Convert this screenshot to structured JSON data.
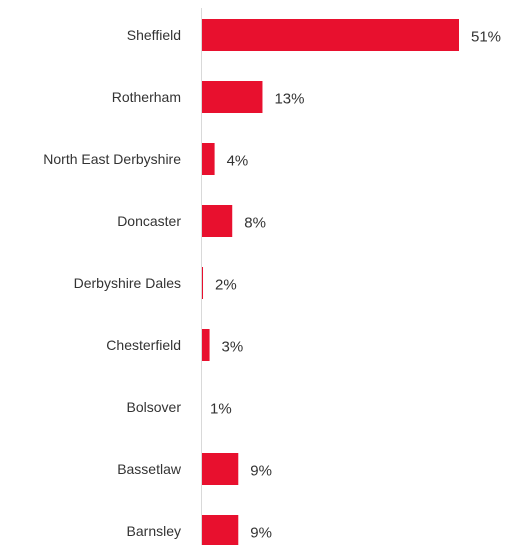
{
  "chart_data": {
    "type": "bar",
    "orientation": "horizontal",
    "categories": [
      "Sheffield",
      "Rotherham",
      "North East Derbyshire",
      "Doncaster",
      "Derbyshire Dales",
      "Chesterfield",
      "Bolsover",
      "Bassetlaw",
      "Barnsley"
    ],
    "values": [
      51,
      13,
      4,
      8,
      2,
      3,
      1,
      9,
      9
    ],
    "value_labels": [
      "51%",
      "13%",
      "4%",
      "8%",
      "2%",
      "3%",
      "1%",
      "9%",
      "9%"
    ],
    "bar_widths_value": [
      51,
      12,
      2.5,
      6,
      0.2,
      1.5,
      0,
      7.2,
      7.2
    ],
    "unit": "%",
    "xlim": [
      0,
      51
    ],
    "grid": false,
    "legend": "none",
    "colors": {
      "bar": "#E8102E",
      "axis": "#D9D9D9",
      "text": "#333333"
    }
  }
}
